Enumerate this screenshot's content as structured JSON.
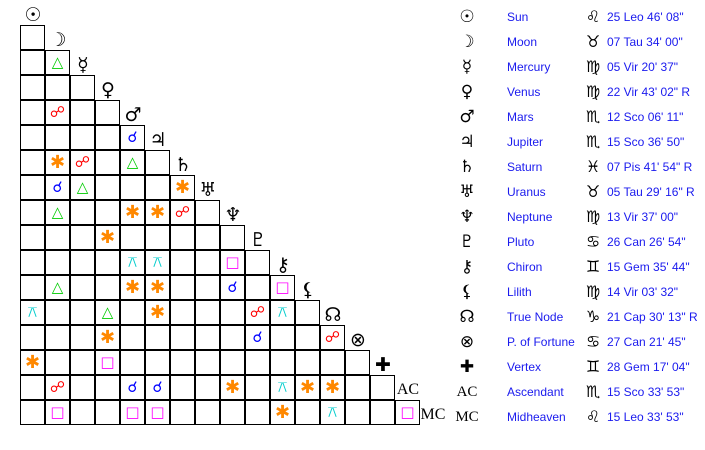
{
  "aspect_symbols": {
    "conjunction": "☌",
    "opposition": "☍",
    "trine": "△",
    "square": "□",
    "sextile": "✱",
    "quincunx": "⚻"
  },
  "aspect_colors": {
    "conjunction": "#0000ff",
    "opposition": "#ff0000",
    "trine": "#00cc00",
    "square": "#ff00ff",
    "sextile": "#ff8800",
    "quincunx": "#00cccc"
  },
  "bodies": [
    {
      "glyph": "☉",
      "name": "Sun",
      "sign_glyph": "♌",
      "position": "25 Leo 46' 08\""
    },
    {
      "glyph": "☽",
      "name": "Moon",
      "sign_glyph": "♉",
      "position": "07 Tau 34' 00\""
    },
    {
      "glyph": "☿",
      "name": "Mercury",
      "sign_glyph": "♍",
      "position": "05 Vir 20' 37\""
    },
    {
      "glyph": "♀",
      "name": "Venus",
      "sign_glyph": "♍",
      "position": "22 Vir 43' 02\" R"
    },
    {
      "glyph": "♂",
      "name": "Mars",
      "sign_glyph": "♏",
      "position": "12 Sco 06' 11\""
    },
    {
      "glyph": "♃",
      "name": "Jupiter",
      "sign_glyph": "♏",
      "position": "15 Sco 36' 50\""
    },
    {
      "glyph": "♄",
      "name": "Saturn",
      "sign_glyph": "♓",
      "position": "07 Pis 41' 54\" R"
    },
    {
      "glyph": "♅",
      "name": "Uranus",
      "sign_glyph": "♉",
      "position": "05 Tau 29' 16\" R"
    },
    {
      "glyph": "♆",
      "name": "Neptune",
      "sign_glyph": "♍",
      "position": "13 Vir 37' 00\""
    },
    {
      "glyph": "♇",
      "name": "Pluto",
      "sign_glyph": "♋",
      "position": "26 Can 26' 54\""
    },
    {
      "glyph": "⚷",
      "name": "Chiron",
      "sign_glyph": "♊",
      "position": "15 Gem 35' 44\""
    },
    {
      "glyph": "⚸",
      "name": "Lilith",
      "sign_glyph": "♍",
      "position": "14 Vir 03' 32\""
    },
    {
      "glyph": "☊",
      "name": "True Node",
      "sign_glyph": "♑",
      "position": "21 Cap 30' 13\" R"
    },
    {
      "glyph": "⊗",
      "name": "P. of Fortune",
      "sign_glyph": "♋",
      "position": "27 Can 21' 45\""
    },
    {
      "glyph": "✚",
      "name": "Vertex",
      "sign_glyph": "♊",
      "position": "28 Gem 17' 04\""
    },
    {
      "glyph": "AC",
      "name": "Ascendant",
      "sign_glyph": "♏",
      "position": "15 Sco 33' 53\""
    },
    {
      "glyph": "MC",
      "name": "Midheaven",
      "sign_glyph": "♌",
      "position": "15 Leo 33' 53\""
    }
  ],
  "aspects": [
    {
      "a": "Mercury",
      "b": "Moon",
      "type": "trine"
    },
    {
      "a": "Mars",
      "b": "Moon",
      "type": "opposition"
    },
    {
      "a": "Jupiter",
      "b": "Mars",
      "type": "conjunction"
    },
    {
      "a": "Saturn",
      "b": "Moon",
      "type": "sextile"
    },
    {
      "a": "Saturn",
      "b": "Mercury",
      "type": "opposition"
    },
    {
      "a": "Saturn",
      "b": "Mars",
      "type": "trine"
    },
    {
      "a": "Uranus",
      "b": "Moon",
      "type": "conjunction"
    },
    {
      "a": "Uranus",
      "b": "Mercury",
      "type": "trine"
    },
    {
      "a": "Uranus",
      "b": "Saturn",
      "type": "sextile"
    },
    {
      "a": "Neptune",
      "b": "Moon",
      "type": "trine"
    },
    {
      "a": "Neptune",
      "b": "Mars",
      "type": "sextile"
    },
    {
      "a": "Neptune",
      "b": "Jupiter",
      "type": "sextile"
    },
    {
      "a": "Neptune",
      "b": "Saturn",
      "type": "opposition"
    },
    {
      "a": "Pluto",
      "b": "Venus",
      "type": "sextile"
    },
    {
      "a": "Chiron",
      "b": "Mars",
      "type": "quincunx"
    },
    {
      "a": "Chiron",
      "b": "Jupiter",
      "type": "quincunx"
    },
    {
      "a": "Chiron",
      "b": "Neptune",
      "type": "square"
    },
    {
      "a": "Lilith",
      "b": "Moon",
      "type": "trine"
    },
    {
      "a": "Lilith",
      "b": "Mars",
      "type": "sextile"
    },
    {
      "a": "Lilith",
      "b": "Jupiter",
      "type": "sextile"
    },
    {
      "a": "Lilith",
      "b": "Neptune",
      "type": "conjunction"
    },
    {
      "a": "Lilith",
      "b": "Chiron",
      "type": "square"
    },
    {
      "a": "True Node",
      "b": "Sun",
      "type": "quincunx"
    },
    {
      "a": "True Node",
      "b": "Venus",
      "type": "trine"
    },
    {
      "a": "True Node",
      "b": "Jupiter",
      "type": "sextile"
    },
    {
      "a": "True Node",
      "b": "Pluto",
      "type": "opposition"
    },
    {
      "a": "True Node",
      "b": "Chiron",
      "type": "quincunx"
    },
    {
      "a": "P. of Fortune",
      "b": "Venus",
      "type": "sextile"
    },
    {
      "a": "P. of Fortune",
      "b": "Pluto",
      "type": "conjunction"
    },
    {
      "a": "P. of Fortune",
      "b": "True Node",
      "type": "opposition"
    },
    {
      "a": "Vertex",
      "b": "Sun",
      "type": "sextile"
    },
    {
      "a": "Vertex",
      "b": "Venus",
      "type": "square"
    },
    {
      "a": "Ascendant",
      "b": "Moon",
      "type": "opposition"
    },
    {
      "a": "Ascendant",
      "b": "Mars",
      "type": "conjunction"
    },
    {
      "a": "Ascendant",
      "b": "Jupiter",
      "type": "conjunction"
    },
    {
      "a": "Ascendant",
      "b": "Neptune",
      "type": "sextile"
    },
    {
      "a": "Ascendant",
      "b": "Chiron",
      "type": "quincunx"
    },
    {
      "a": "Ascendant",
      "b": "Lilith",
      "type": "sextile"
    },
    {
      "a": "Ascendant",
      "b": "True Node",
      "type": "sextile"
    },
    {
      "a": "Midheaven",
      "b": "Moon",
      "type": "square"
    },
    {
      "a": "Midheaven",
      "b": "Mars",
      "type": "square"
    },
    {
      "a": "Midheaven",
      "b": "Jupiter",
      "type": "square"
    },
    {
      "a": "Midheaven",
      "b": "Chiron",
      "type": "sextile"
    },
    {
      "a": "Midheaven",
      "b": "True Node",
      "type": "quincunx"
    },
    {
      "a": "Midheaven",
      "b": "Ascendant",
      "type": "square"
    }
  ]
}
